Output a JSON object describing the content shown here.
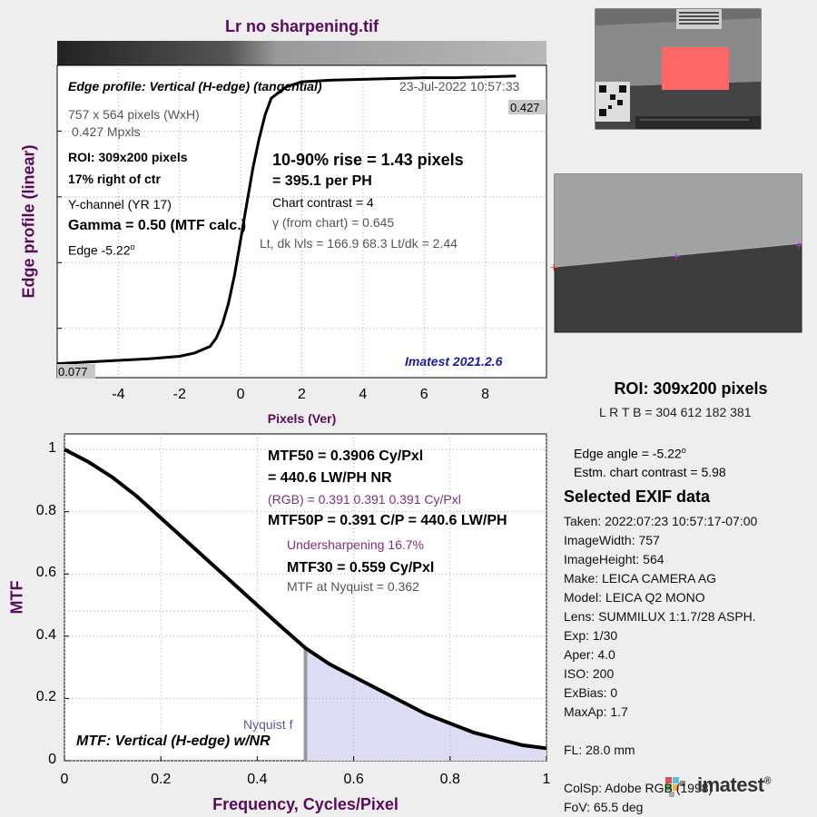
{
  "file_title": "Lr no sharpening.tif",
  "colors": {
    "title_purple": "#5a0a5a",
    "curve": "#000000",
    "nyquist_fill": "#dcdcf4",
    "nyquist_bar": "#999999",
    "roi_red": "#ff6666",
    "version_blue": "#1a1a9a"
  },
  "edge_panel": {
    "heading": "Edge profile: Vertical (H-edge) (tangential)",
    "date": "23-Jul-2022 10:57:33",
    "size": "757 x 564 pixels (WxH)",
    "mpxls": "0.427 Mpxls",
    "roi": "ROI:  309x200 pixels",
    "position": "17% right of ctr",
    "channel": "Y-channel  (YR 17)",
    "gamma": "Gamma = 0.50 (MTF calc.)",
    "edge_prefix": "Edge  -5.22",
    "edge_deg": "o",
    "rise": "10-90% rise = 1.43 pixels",
    "per_ph": "=  395.1 per PH",
    "contrast": "Chart contrast = 4",
    "gamma_chart": "γ (from chart) = 0.645",
    "levels": "Lt, dk lvls = 166.9  68.3  Lt/dk = 2.44",
    "version": "Imatest 2021.2.6",
    "high_label": "0.427",
    "low_label": "0.077",
    "xlabel": "Pixels (Ver)",
    "ylabel": "Edge profile (linear)"
  },
  "mtf_panel": {
    "mtf50_a": "MTF50 = 0.3906 Cy/Pxl",
    "mtf50_b": "= 440.6 LW/PH  NR",
    "rgb": "(RGB) = 0.391  0.391  0.391 Cy/Pxl",
    "mtf50p": "MTF50P = 0.391 C/P = 440.6 LW/PH",
    "undersharp": "Undersharpening 16.7%",
    "mtf30": "MTF30 = 0.559 Cy/Pxl",
    "nyq_value": "MTF at Nyquist = 0.362",
    "nyq_label": "Nyquist f",
    "caption": "MTF: Vertical (H-edge) w/NR",
    "xlabel": "Frequency, Cycles/Pixel",
    "ylabel": "MTF"
  },
  "roi_info": {
    "title": "ROI:  309x200 pixels",
    "lrtb": "L R  T B = 304 612  182 381",
    "edge_angle_prefix": "Edge angle = -5.22",
    "edge_angle_deg": "o",
    "contrast": "Estm. chart contrast = 5.98"
  },
  "exif": {
    "title": "Selected EXIF data",
    "lines": [
      "Taken: 2022:07:23 10:57:17-07:00",
      "ImageWidth:  757",
      "ImageHeight:  564",
      "Make:  LEICA CAMERA AG",
      "Model:  LEICA Q2 MONO",
      "Lens:   SUMMILUX 1:1.7/28 ASPH.",
      "Exp:    1/30",
      "Aper:   4.0",
      "ISO:    200",
      "ExBias:  0",
      "MaxAp:  1.7",
      "FL:      28.0 mm",
      "ColSp:  Adobe RGB (1998)",
      "FoV:   65.5 deg"
    ]
  },
  "logo": {
    "text": "imatest",
    "mark": "®"
  },
  "chart_data": [
    {
      "type": "line",
      "title": "Lr no sharpening.tif",
      "xlabel": "Pixels (Ver)",
      "ylabel": "Edge profile (linear)",
      "xlim": [
        -6,
        10
      ],
      "ylim": [
        0.06,
        0.44
      ],
      "x_ticks": [
        -4,
        -2,
        0,
        2,
        4,
        6,
        8
      ],
      "grid": true,
      "series": [
        {
          "x": [
            -6,
            -5,
            -4,
            -3,
            -2,
            -1.5,
            -1,
            -0.8,
            -0.6,
            -0.4,
            -0.2,
            0,
            0.2,
            0.4,
            0.6,
            0.8,
            1,
            1.5,
            2,
            3,
            4,
            5,
            6,
            7,
            8,
            9
          ],
          "y": [
            0.077,
            0.079,
            0.081,
            0.083,
            0.086,
            0.09,
            0.098,
            0.108,
            0.125,
            0.15,
            0.185,
            0.228,
            0.272,
            0.315,
            0.35,
            0.38,
            0.4,
            0.414,
            0.42,
            0.422,
            0.423,
            0.424,
            0.425,
            0.425,
            0.426,
            0.427
          ]
        }
      ]
    },
    {
      "type": "line",
      "title": "MTF: Vertical (H-edge) w/NR",
      "xlabel": "Frequency, Cycles/Pixel",
      "ylabel": "MTF",
      "xlim": [
        0,
        1
      ],
      "ylim": [
        0,
        1.05
      ],
      "x_ticks": [
        0,
        0.2,
        0.4,
        0.6,
        0.8,
        1
      ],
      "y_ticks": [
        0,
        0.2,
        0.4,
        0.6,
        0.8,
        1
      ],
      "grid": true,
      "nyquist": 0.5,
      "mtf50": 0.3906,
      "mtf30": 0.559,
      "mtf_at_nyquist": 0.362,
      "series": [
        {
          "x": [
            0,
            0.05,
            0.1,
            0.15,
            0.2,
            0.25,
            0.3,
            0.35,
            0.4,
            0.45,
            0.5,
            0.55,
            0.6,
            0.65,
            0.7,
            0.75,
            0.8,
            0.85,
            0.9,
            0.95,
            1.0
          ],
          "y": [
            1.0,
            0.96,
            0.91,
            0.85,
            0.78,
            0.71,
            0.64,
            0.57,
            0.5,
            0.43,
            0.362,
            0.31,
            0.27,
            0.23,
            0.19,
            0.15,
            0.12,
            0.09,
            0.07,
            0.05,
            0.04
          ]
        }
      ]
    }
  ]
}
